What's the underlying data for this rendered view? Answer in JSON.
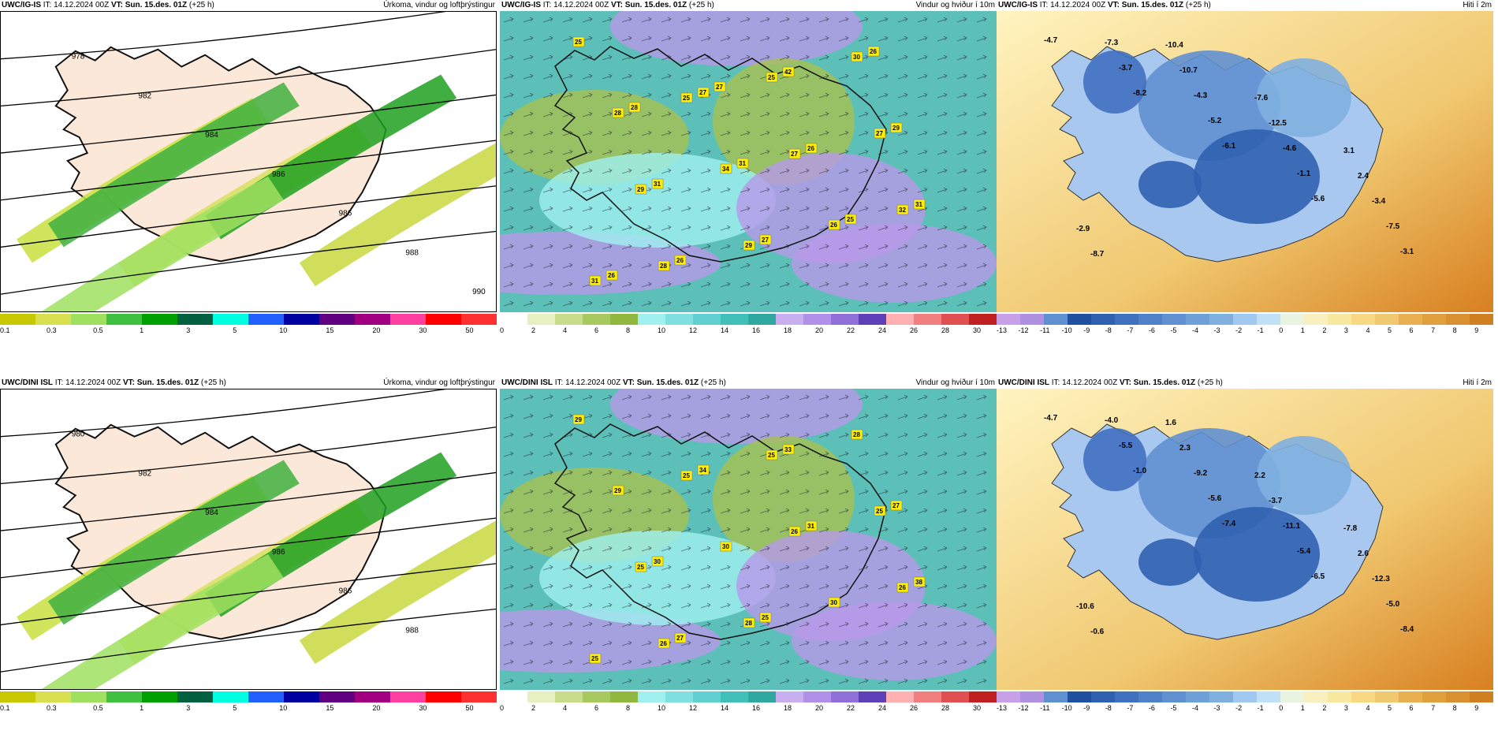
{
  "panels": [
    {
      "model": "UWC/IG-IS",
      "it": "IT: 14.12.2024 00Z",
      "vt_label": "VT:",
      "vt": "Sun. 15.des. 01Z",
      "lead": "(+25 h)",
      "title": "Úrkoma, vindur og loftþrýstingur",
      "kind": "precip",
      "isobars": [
        "978",
        "982",
        "984",
        "986",
        "986",
        "988",
        "990"
      ]
    },
    {
      "model": "UWC/IG-IS",
      "it": "IT: 14.12.2024 00Z",
      "vt_label": "VT:",
      "vt": "Sun. 15.des. 01Z",
      "lead": "(+25 h)",
      "title": "Vindur og hviður í 10m",
      "kind": "wind",
      "gusts": [
        "25",
        "25",
        "27",
        "32",
        "28",
        "25",
        "27",
        "29",
        "29",
        "30",
        "28",
        "34",
        "26",
        "31",
        "27",
        "26",
        "31",
        "26",
        "42",
        "29",
        "31",
        "27",
        "26",
        "28",
        "31",
        "25",
        "26",
        "27"
      ]
    },
    {
      "model": "UWC/IG-IS",
      "it": "IT: 14.12.2024 00Z",
      "vt_label": "VT:",
      "vt": "Sun. 15.des. 01Z",
      "lead": "(+25 h)",
      "title": "Hiti í 2m",
      "kind": "temp",
      "temps": [
        "-4.7",
        "-8.2",
        "-6.1",
        "-5.6",
        "-3.1",
        "-3.7",
        "-5.2",
        "-1.1",
        "-7.5",
        "-7.3",
        "-4.3",
        "-4.6",
        "-3.4",
        "-8.7",
        "-10.7",
        "-12.5",
        "2.4",
        "-2.9",
        "-10.4",
        "-7.6",
        "3.1"
      ]
    },
    {
      "model": "UWC/DINI ISL",
      "it": "IT: 14.12.2024 00Z",
      "vt_label": "VT:",
      "vt": "Sun. 15.des. 01Z",
      "lead": "(+25 h)",
      "title": "Úrkoma, vindur og loftþrýstingur",
      "kind": "precip",
      "isobars": [
        "980",
        "982",
        "984",
        "986",
        "986",
        "988"
      ]
    },
    {
      "model": "UWC/DINI ISL",
      "it": "IT: 14.12.2024 00Z",
      "vt_label": "VT:",
      "vt": "Sun. 15.des. 01Z",
      "lead": "(+25 h)",
      "title": "Vindur og hviður í 10m",
      "kind": "wind",
      "gusts": [
        "29",
        "25",
        "26",
        "26",
        "26",
        "25",
        "25",
        "25",
        "28",
        "28",
        "29",
        "30",
        "30",
        "25",
        "34",
        "31",
        "38",
        "27",
        "33",
        "27",
        "30",
        "25"
      ]
    },
    {
      "model": "UWC/DINI ISL",
      "it": "IT: 14.12.2024 00Z",
      "vt_label": "VT:",
      "vt": "Sun. 15.des. 01Z",
      "lead": "(+25 h)",
      "title": "Hiti í 2m",
      "kind": "temp",
      "temps": [
        "-4.7",
        "-1.0",
        "-7.4",
        "-6.5",
        "-8.4",
        "-5.5",
        "-5.6",
        "-5.4",
        "-5.0",
        "-4.0",
        "-9.2",
        "-11.1",
        "-12.3",
        "-0.6",
        "2.3",
        "-3.7",
        "2.6",
        "-10.6",
        "1.6",
        "2.2",
        "-7.8"
      ]
    }
  ],
  "colorbars": {
    "precip": {
      "colors": [
        "#c8c800",
        "#d8e050",
        "#a0e060",
        "#40c040",
        "#00a000",
        "#006040",
        "#00ffe0",
        "#2060ff",
        "#0000a0",
        "#600080",
        "#a00080",
        "#ff40a0",
        "#ff0000",
        "#ff3030"
      ],
      "labels": [
        "0.1",
        "0.3",
        "0.5",
        "1",
        "3",
        "5",
        "10",
        "15",
        "20",
        "30",
        "50"
      ]
    },
    "wind": {
      "colors": [
        "#ffffff",
        "#e6f0c0",
        "#c8dc8c",
        "#a8c860",
        "#90b840",
        "#a0f0f0",
        "#80e0e0",
        "#60d0d0",
        "#40c0b8",
        "#30a8a0",
        "#c8b0f0",
        "#b090e8",
        "#9070d8",
        "#6040b8",
        "#ffb0b0",
        "#f08080",
        "#e05050",
        "#c02020"
      ],
      "labels": [
        "0",
        "2",
        "4",
        "6",
        "8",
        "10",
        "12",
        "14",
        "16",
        "18",
        "20",
        "22",
        "24",
        "26",
        "28",
        "30"
      ]
    },
    "temp": {
      "colors": [
        "#c8a0e8",
        "#b090e0",
        "#6090d0",
        "#2050a0",
        "#3060b0",
        "#4070c0",
        "#5080c8",
        "#6090d0",
        "#70a0d8",
        "#80b0e0",
        "#a0c8f0",
        "#c0e0f8",
        "#e8f4e0",
        "#f8f0c0",
        "#f8e8a0",
        "#f8d880",
        "#f0c870",
        "#e8b050",
        "#e0a040",
        "#d89030",
        "#d08020"
      ],
      "labels": [
        "-13",
        "-12",
        "-11",
        "-10",
        "-9",
        "-8",
        "-7",
        "-6",
        "-5",
        "-4",
        "-3",
        "-2",
        "-1",
        "0",
        "1",
        "2",
        "3",
        "4",
        "5",
        "6",
        "7",
        "8",
        "9"
      ]
    }
  }
}
